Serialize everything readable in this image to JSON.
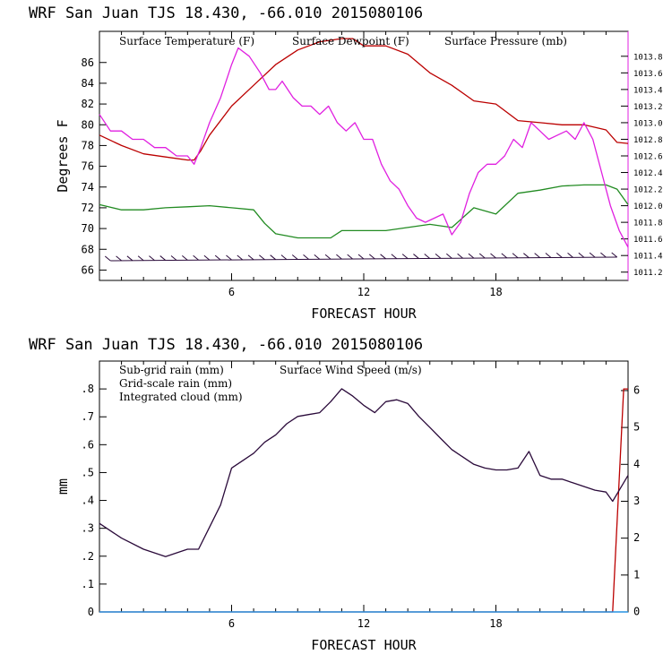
{
  "colors": {
    "temperature": "#bb0000",
    "dewpoint": "#228b22",
    "pressure": "#e020e0",
    "subgrid_rain": "#bb0000",
    "gridscale_rain": "#228b22",
    "cloud": "#1e90ff",
    "wind": "#2a0a3a",
    "windbarb": "#2a0a3a"
  },
  "chart_data": [
    {
      "type": "line",
      "title": "WRF   San Juan TJS  18.430, -66.010  2015080106",
      "xlabel": "FORECAST HOUR",
      "ylabel": "Degrees F",
      "xlim": [
        0,
        24
      ],
      "ylim": [
        65,
        89
      ],
      "y2lim": [
        1011.1,
        1014.1
      ],
      "xticks": [
        "6",
        "12",
        "18"
      ],
      "xtick_values": [
        6,
        12,
        18
      ],
      "yticks": [
        "66",
        "68",
        "70",
        "72",
        "74",
        "76",
        "78",
        "80",
        "82",
        "84",
        "86"
      ],
      "ytick_values": [
        66,
        68,
        70,
        72,
        74,
        76,
        78,
        80,
        82,
        84,
        86
      ],
      "y2ticks": [
        "1011.2",
        "1011.4",
        "1011.6",
        "1011.8",
        "1012.0",
        "1012.2",
        "1012.4",
        "1012.6",
        "1012.8",
        "1013.0",
        "1013.2",
        "1013.4",
        "1013.6",
        "1013.8"
      ],
      "y2tick_values": [
        1011.2,
        1011.4,
        1011.6,
        1011.8,
        1012.0,
        1012.2,
        1012.4,
        1012.6,
        1012.8,
        1013.0,
        1013.2,
        1013.4,
        1013.6,
        1013.8
      ],
      "series": [
        {
          "name": "Surface Temperature (F)",
          "axis": "left",
          "color_key": "temperature",
          "x": [
            0,
            1,
            2,
            3,
            4,
            4.3,
            4.6,
            5,
            6,
            7,
            8,
            9,
            10,
            11,
            11.5,
            12,
            13,
            14,
            15,
            16,
            17,
            18,
            19,
            20,
            21,
            22,
            23,
            23.5,
            24
          ],
          "y": [
            79,
            78,
            77.2,
            76.9,
            76.6,
            76.6,
            77.5,
            79,
            81.8,
            83.8,
            85.8,
            87.2,
            88,
            88.3,
            88.3,
            87.6,
            87.6,
            86.8,
            85,
            83.8,
            82.3,
            82,
            80.4,
            80.2,
            80,
            80,
            79.5,
            78.3,
            78.2
          ]
        },
        {
          "name": "Surface Dewpoint (F)",
          "axis": "left",
          "color_key": "dewpoint",
          "x": [
            0,
            1,
            2,
            3,
            4,
            5,
            6,
            7,
            7.5,
            8,
            9,
            10,
            10.5,
            11,
            12,
            13,
            14,
            15,
            16,
            17,
            18,
            19,
            20,
            21,
            22,
            23,
            23.5,
            24
          ],
          "y": [
            72.3,
            71.8,
            71.8,
            72,
            72.1,
            72.2,
            72,
            71.8,
            70.5,
            69.5,
            69.1,
            69.1,
            69.1,
            69.8,
            69.8,
            69.8,
            70.1,
            70.4,
            70.1,
            72,
            71.4,
            73.4,
            73.7,
            74.1,
            74.2,
            74.2,
            73.8,
            72.3
          ]
        },
        {
          "name": "Surface Pressure (mb)",
          "axis": "right",
          "color_key": "pressure",
          "x": [
            0,
            0.5,
            1,
            1.5,
            2,
            2.5,
            3,
            3.5,
            4,
            4.3,
            4.6,
            5,
            5.5,
            6,
            6.3,
            6.8,
            7.3,
            7.7,
            8,
            8.3,
            8.8,
            9.2,
            9.6,
            10,
            10.4,
            10.8,
            11.2,
            11.6,
            12,
            12.4,
            12.8,
            13.2,
            13.6,
            14,
            14.4,
            14.8,
            15.2,
            15.6,
            16,
            16.4,
            16.8,
            17.2,
            17.6,
            18,
            18.4,
            18.8,
            19.2,
            19.6,
            20,
            20.4,
            20.8,
            21.2,
            21.6,
            22,
            22.4,
            22.8,
            23.2,
            23.6,
            24
          ],
          "y": [
            1013.1,
            1012.9,
            1012.9,
            1012.8,
            1012.8,
            1012.7,
            1012.7,
            1012.6,
            1012.6,
            1012.5,
            1012.7,
            1013.0,
            1013.3,
            1013.7,
            1013.9,
            1013.8,
            1013.6,
            1013.4,
            1013.4,
            1013.5,
            1013.3,
            1013.2,
            1013.2,
            1013.1,
            1013.2,
            1013.0,
            1012.9,
            1013.0,
            1012.8,
            1012.8,
            1012.5,
            1012.3,
            1012.2,
            1012.0,
            1011.85,
            1011.8,
            1011.85,
            1011.9,
            1011.65,
            1011.8,
            1012.15,
            1012.4,
            1012.5,
            1012.5,
            1012.6,
            1012.8,
            1012.7,
            1013.0,
            1012.9,
            1012.8,
            1012.85,
            1012.9,
            1012.8,
            1013.0,
            1012.8,
            1012.4,
            1012.0,
            1011.7,
            1011.5
          ]
        }
      ],
      "wind_barbs": {
        "label": "",
        "x_start": 0.5,
        "x_step": 0.5,
        "count": 47,
        "y_level": 66.9
      }
    },
    {
      "type": "line",
      "title": "WRF   San Juan TJS  18.430, -66.010  2015080106",
      "xlabel": "FORECAST HOUR",
      "ylabel": "mm",
      "xlim": [
        0,
        24
      ],
      "ylim": [
        0,
        0.9
      ],
      "y2lim": [
        0,
        6.8
      ],
      "xticks": [
        "6",
        "12",
        "18"
      ],
      "xtick_values": [
        6,
        12,
        18
      ],
      "yticks": [
        "0",
        ".1",
        ".2",
        ".3",
        ".4",
        ".5",
        ".6",
        ".7",
        ".8"
      ],
      "ytick_values": [
        0,
        0.1,
        0.2,
        0.3,
        0.4,
        0.5,
        0.6,
        0.7,
        0.8
      ],
      "y2ticks": [
        "0",
        "1",
        "2",
        "3",
        "4",
        "5",
        "6"
      ],
      "y2tick_values": [
        0,
        1,
        2,
        3,
        4,
        5,
        6
      ],
      "series": [
        {
          "name": "Sub-grid rain (mm)",
          "axis": "left",
          "color_key": "subgrid_rain",
          "x": [
            0,
            23.3,
            23.8,
            24
          ],
          "y": [
            0,
            0,
            0.8,
            0.8
          ]
        },
        {
          "name": "Grid-scale rain (mm)",
          "axis": "left",
          "color_key": "gridscale_rain",
          "x": [
            0,
            24
          ],
          "y": [
            0,
            0
          ]
        },
        {
          "name": "Integrated cloud (mm)",
          "axis": "left",
          "color_key": "cloud",
          "x": [
            0,
            24
          ],
          "y": [
            0,
            0
          ]
        },
        {
          "name": "Surface Wind Speed (m/s)",
          "axis": "right",
          "color_key": "wind",
          "x": [
            0,
            0.5,
            1,
            2,
            3,
            3.5,
            4,
            4.5,
            5,
            5.5,
            6,
            6.5,
            7,
            7.5,
            8,
            8.5,
            9,
            9.5,
            10,
            10.5,
            11,
            11.5,
            12,
            12.5,
            13,
            13.5,
            14,
            14.5,
            15,
            15.5,
            16,
            16.5,
            17,
            17.5,
            18,
            18.5,
            19,
            19.5,
            20,
            20.5,
            21,
            21.5,
            22,
            22.5,
            23,
            23.3,
            23.6,
            24
          ],
          "y": [
            2.4,
            2.2,
            2.0,
            1.7,
            1.5,
            1.6,
            1.7,
            1.7,
            2.3,
            2.9,
            3.9,
            4.1,
            4.3,
            4.6,
            4.8,
            5.1,
            5.3,
            5.35,
            5.4,
            5.7,
            6.05,
            5.85,
            5.6,
            5.4,
            5.7,
            5.75,
            5.65,
            5.3,
            5.0,
            4.7,
            4.4,
            4.2,
            4.0,
            3.9,
            3.85,
            3.85,
            3.9,
            4.35,
            3.7,
            3.6,
            3.6,
            3.5,
            3.4,
            3.3,
            3.25,
            3.0,
            3.3,
            3.7
          ]
        }
      ]
    }
  ]
}
